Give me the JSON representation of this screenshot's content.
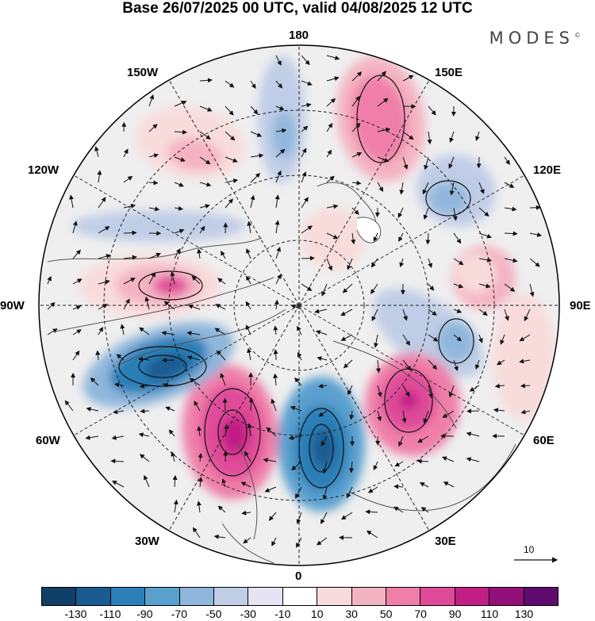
{
  "title": "Base 26/07/2025 00 UTC, valid 04/08/2025 12 UTC",
  "brand": "MODES",
  "brand_mark": "©",
  "longitude_labels": [
    "180",
    "150E",
    "120E",
    "90E",
    "60E",
    "30E",
    "0",
    "30W",
    "60W",
    "90W",
    "120W",
    "150W"
  ],
  "vector_reference": {
    "label": "10"
  },
  "colorbar": {
    "colors": [
      "#0f3f66",
      "#1a5c92",
      "#2c7fb8",
      "#5aa0cf",
      "#8fb7db",
      "#c0cde6",
      "#e6e4f2",
      "#ffffff",
      "#f8dcdc",
      "#f4b3c2",
      "#ef7fa8",
      "#df4b98",
      "#c21f84",
      "#93107a",
      "#5e0a6e"
    ],
    "tick_labels": [
      "-130",
      "-110",
      "-90",
      "-70",
      "-50",
      "-30",
      "-10",
      "10",
      "30",
      "50",
      "70",
      "90",
      "110",
      "130"
    ]
  },
  "map_layers": {
    "background": "#efefef",
    "coast_color": "#555555",
    "grid_color": "#222222"
  }
}
